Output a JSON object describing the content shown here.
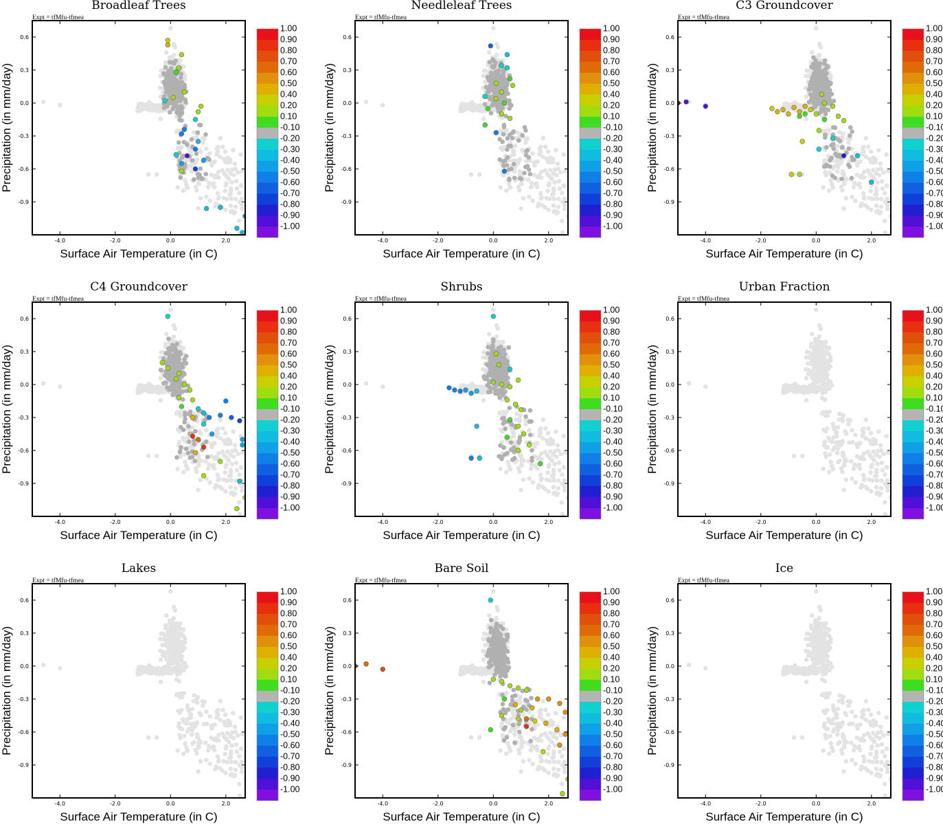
{
  "figure": {
    "expt_label": "Expt = tfMfu-tfmea",
    "xlabel": "Surface Air Temperature (in C)",
    "ylabel": "Precipitation (in mm/day)",
    "x_ticks": [
      "-4.0",
      "-2.0",
      "0.0",
      "2.0"
    ],
    "y_ticks": [
      "0.6",
      "0.3",
      "0.0",
      "-0.3",
      "-0.6",
      "-0.9"
    ],
    "colorbar_labels": [
      "1.00",
      "0.90",
      "0.80",
      "0.70",
      "0.60",
      "0.50",
      "0.40",
      "0.20",
      "0.10",
      "-0.10",
      "-0.20",
      "-0.30",
      "-0.40",
      "-0.50",
      "-0.60",
      "-0.70",
      "-0.80",
      "-0.90",
      "-1.00"
    ],
    "colorbar_colors": [
      "#e8101a",
      "#e83010",
      "#e0500a",
      "#e06a05",
      "#e0900a",
      "#e0b000",
      "#c8d000",
      "#a0dc10",
      "#40dc20",
      "#b4b4b4",
      "#10d0d0",
      "#10bce0",
      "#10a0e8",
      "#1080e8",
      "#1060e0",
      "#1040d8",
      "#2020d0",
      "#5010d8",
      "#8010e0"
    ]
  },
  "chart_data": [
    {
      "title": "Broadleaf Trees",
      "type": "scatter",
      "xlabel": "Surface Air Temperature (in C)",
      "ylabel": "Precipitation (in mm/day)",
      "xlim": [
        -5.0,
        2.7
      ],
      "ylim": [
        -1.2,
        0.75
      ],
      "colorbar_range": [
        -1.0,
        1.0
      ],
      "background_cloud": "light-gray cross-shaped cloud: T -2 to 2.6 C, P -1.2 to 0.6 mm/day",
      "gray_core": [
        [
          -0.1,
          0.0
        ],
        [
          0.0,
          0.1
        ],
        [
          0.1,
          -0.1
        ],
        [
          0.2,
          0.2
        ],
        [
          0.3,
          0.0
        ],
        [
          0.4,
          -0.2
        ],
        [
          0.5,
          0.1
        ],
        [
          0.2,
          -0.3
        ],
        [
          0.3,
          0.4
        ],
        [
          0.1,
          0.3
        ],
        [
          0.6,
          -0.1
        ],
        [
          0.0,
          -0.2
        ],
        [
          0.4,
          0.2
        ],
        [
          0.5,
          -0.4
        ],
        [
          0.2,
          -0.5
        ]
      ],
      "colored_points": [
        [
          -0.1,
          0.57,
          0.4
        ],
        [
          -0.1,
          0.53,
          0.5
        ],
        [
          0.4,
          0.44,
          0.2
        ],
        [
          0.3,
          0.32,
          0.2
        ],
        [
          0.2,
          0.28,
          0.1
        ],
        [
          0.5,
          0.1,
          0.2
        ],
        [
          0.1,
          0.05,
          0.2
        ],
        [
          -0.2,
          0.02,
          -0.2
        ],
        [
          1.1,
          -0.03,
          0.2
        ],
        [
          1.0,
          -0.08,
          0.2
        ],
        [
          0.9,
          -0.15,
          -0.2
        ],
        [
          0.5,
          -0.24,
          -0.5
        ],
        [
          0.4,
          -0.28,
          -0.5
        ],
        [
          1.0,
          -0.35,
          -0.3
        ],
        [
          0.9,
          -0.42,
          -0.5
        ],
        [
          0.2,
          -0.47,
          -0.2
        ],
        [
          0.6,
          -0.48,
          -0.9
        ],
        [
          1.2,
          -0.52,
          -0.4
        ],
        [
          0.4,
          -0.55,
          -0.4
        ],
        [
          0.9,
          -0.6,
          -0.7
        ],
        [
          0.4,
          -0.62,
          0.2
        ],
        [
          1.3,
          -0.96,
          -0.3
        ],
        [
          1.8,
          -0.95,
          -0.3
        ],
        [
          2.4,
          -1.14,
          -0.3
        ],
        [
          2.6,
          -1.18,
          -0.3
        ],
        [
          2.7,
          -1.03,
          -0.5
        ]
      ]
    },
    {
      "title": "Needleleaf Trees",
      "type": "scatter",
      "xlabel": "Surface Air Temperature (in C)",
      "ylabel": "Precipitation (in mm/day)",
      "xlim": [
        -5.0,
        2.7
      ],
      "ylim": [
        -1.2,
        0.75
      ],
      "colorbar_range": [
        -1.0,
        1.0
      ],
      "colored_points": [
        [
          -0.1,
          0.52,
          -0.6
        ],
        [
          0.5,
          0.44,
          -0.3
        ],
        [
          0.3,
          0.34,
          -0.2
        ],
        [
          0.5,
          0.32,
          -0.2
        ],
        [
          0.6,
          0.22,
          0.1
        ],
        [
          0.1,
          0.18,
          0.2
        ],
        [
          0.7,
          0.16,
          0.2
        ],
        [
          0.3,
          0.1,
          0.2
        ],
        [
          -0.3,
          0.06,
          -0.2
        ],
        [
          0.1,
          0.04,
          0.2
        ],
        [
          0.4,
          0.0,
          0.1
        ],
        [
          -0.2,
          -0.05,
          0.1
        ],
        [
          0.3,
          -0.1,
          0.2
        ],
        [
          0.6,
          -0.14,
          0.2
        ],
        [
          -0.3,
          -0.2,
          0.1
        ],
        [
          0.1,
          -0.27,
          -0.5
        ],
        [
          0.4,
          -0.62,
          -0.5
        ]
      ]
    },
    {
      "title": "C3 Groundcover",
      "type": "scatter",
      "xlabel": "Surface Air Temperature (in C)",
      "ylabel": "Precipitation (in mm/day)",
      "xlim": [
        -5.0,
        2.7
      ],
      "ylim": [
        -1.2,
        0.75
      ],
      "colorbar_range": [
        -1.0,
        1.0
      ],
      "colored_points": [
        [
          -5.0,
          0.0,
          -0.9
        ],
        [
          -4.7,
          0.01,
          -0.9
        ],
        [
          -4.0,
          -0.03,
          -0.9
        ],
        [
          -1.6,
          -0.05,
          0.4
        ],
        [
          -1.4,
          -0.08,
          0.5
        ],
        [
          -1.2,
          -0.06,
          0.5
        ],
        [
          -1.0,
          -0.1,
          0.5
        ],
        [
          -0.8,
          -0.04,
          0.5
        ],
        [
          -0.6,
          -0.08,
          0.5
        ],
        [
          -0.4,
          -0.03,
          0.5
        ],
        [
          -0.2,
          -0.06,
          0.4
        ],
        [
          0.0,
          -0.1,
          0.2
        ],
        [
          0.2,
          0.08,
          0.2
        ],
        [
          0.3,
          0.0,
          0.2
        ],
        [
          0.6,
          -0.03,
          0.2
        ],
        [
          0.8,
          -0.12,
          0.2
        ],
        [
          1.0,
          -0.16,
          0.2
        ],
        [
          -0.4,
          -0.1,
          0.1
        ],
        [
          0.3,
          -0.15,
          0.1
        ],
        [
          -0.6,
          -0.12,
          0.1
        ],
        [
          0.1,
          -0.25,
          0.3
        ],
        [
          -0.5,
          -0.35,
          0.4
        ],
        [
          0.6,
          -0.32,
          -0.2
        ],
        [
          0.1,
          -0.42,
          -0.2
        ],
        [
          1.0,
          -0.48,
          -0.8
        ],
        [
          1.5,
          -0.48,
          -0.3
        ],
        [
          2.0,
          -0.72,
          -0.3
        ],
        [
          -0.9,
          -0.65,
          0.4
        ],
        [
          -0.6,
          -0.65,
          0.3
        ]
      ]
    },
    {
      "title": "C4 Groundcover",
      "type": "scatter",
      "xlabel": "Surface Air Temperature (in C)",
      "ylabel": "Precipitation (in mm/day)",
      "xlim": [
        -5.0,
        2.7
      ],
      "ylim": [
        -1.2,
        0.75
      ],
      "colorbar_range": [
        -1.0,
        1.0
      ],
      "colored_points": [
        [
          -0.1,
          0.62,
          -0.2
        ],
        [
          -0.3,
          0.2,
          0.3
        ],
        [
          -0.1,
          0.15,
          0.2
        ],
        [
          0.3,
          0.1,
          0.2
        ],
        [
          0.2,
          0.05,
          0.2
        ],
        [
          0.5,
          0.0,
          0.2
        ],
        [
          0.7,
          -0.05,
          0.2
        ],
        [
          0.3,
          -0.12,
          0.2
        ],
        [
          0.8,
          -0.14,
          0.2
        ],
        [
          0.4,
          -0.2,
          0.1
        ],
        [
          1.0,
          -0.22,
          -0.2
        ],
        [
          1.2,
          -0.26,
          -0.3
        ],
        [
          0.8,
          -0.3,
          0.5
        ],
        [
          1.4,
          -0.3,
          -0.5
        ],
        [
          1.8,
          -0.28,
          -0.5
        ],
        [
          2.2,
          -0.3,
          -0.6
        ],
        [
          2.5,
          -0.33,
          -0.7
        ],
        [
          2.0,
          -0.15,
          -0.5
        ],
        [
          1.2,
          -0.36,
          -0.2
        ],
        [
          1.5,
          -0.45,
          -0.4
        ],
        [
          0.8,
          -0.47,
          0.9
        ],
        [
          1.0,
          -0.5,
          0.7
        ],
        [
          1.2,
          -0.57,
          0.9
        ],
        [
          0.9,
          -0.62,
          0.5
        ],
        [
          2.6,
          -0.5,
          -0.4
        ],
        [
          2.6,
          -0.55,
          -0.4
        ],
        [
          1.8,
          -0.7,
          0.3
        ],
        [
          1.2,
          -0.83,
          0.3
        ],
        [
          2.5,
          -0.88,
          -0.3
        ],
        [
          2.7,
          -1.03,
          0.3
        ],
        [
          2.4,
          -1.13,
          0.2
        ]
      ]
    },
    {
      "title": "Shrubs",
      "type": "scatter",
      "xlabel": "Surface Air Temperature (in C)",
      "ylabel": "Precipitation (in mm/day)",
      "xlim": [
        -5.0,
        2.7
      ],
      "ylim": [
        -1.2,
        0.75
      ],
      "colorbar_range": [
        -1.0,
        1.0
      ],
      "colored_points": [
        [
          0.0,
          0.62,
          -0.2
        ],
        [
          0.1,
          0.28,
          0.2
        ],
        [
          0.2,
          0.18,
          0.3
        ],
        [
          0.6,
          0.14,
          -0.2
        ],
        [
          -1.6,
          -0.03,
          -0.5
        ],
        [
          -1.4,
          -0.05,
          -0.5
        ],
        [
          -1.2,
          -0.06,
          -0.5
        ],
        [
          -1.0,
          -0.05,
          -0.4
        ],
        [
          -0.8,
          -0.08,
          -0.4
        ],
        [
          -0.6,
          -0.06,
          -0.3
        ],
        [
          0.0,
          0.02,
          0.2
        ],
        [
          0.3,
          0.0,
          0.2
        ],
        [
          0.6,
          -0.02,
          0.2
        ],
        [
          0.9,
          0.04,
          0.2
        ],
        [
          0.5,
          -0.14,
          0.2
        ],
        [
          0.8,
          -0.18,
          0.2
        ],
        [
          1.0,
          -0.23,
          0.2
        ],
        [
          0.6,
          -0.32,
          0.1
        ],
        [
          0.9,
          -0.38,
          0.2
        ],
        [
          -0.6,
          -0.38,
          -0.3
        ],
        [
          0.5,
          -0.48,
          0.1
        ],
        [
          1.1,
          -0.45,
          0.2
        ],
        [
          1.3,
          -0.55,
          0.2
        ],
        [
          0.9,
          -0.6,
          0.2
        ],
        [
          1.7,
          -0.72,
          0.1
        ],
        [
          -0.8,
          -0.67,
          -0.5
        ],
        [
          -0.5,
          -0.67,
          -0.3
        ]
      ]
    },
    {
      "title": "Urban Fraction",
      "type": "scatter",
      "xlabel": "Surface Air Temperature (in C)",
      "ylabel": "Precipitation (in mm/day)",
      "xlim": [
        -5.0,
        2.7
      ],
      "ylim": [
        -1.2,
        0.75
      ],
      "colorbar_range": [
        -1.0,
        1.0
      ],
      "colored_points": []
    },
    {
      "title": "Lakes",
      "type": "scatter",
      "xlabel": "Surface Air Temperature (in C)",
      "ylabel": "Precipitation (in mm/day)",
      "xlim": [
        -5.0,
        2.7
      ],
      "ylim": [
        -1.2,
        0.75
      ],
      "colorbar_range": [
        -1.0,
        1.0
      ],
      "colored_points": []
    },
    {
      "title": "Bare Soil",
      "type": "scatter",
      "xlabel": "Surface Air Temperature (in C)",
      "ylabel": "Precipitation (in mm/day)",
      "xlim": [
        -5.0,
        2.7
      ],
      "ylim": [
        -1.2,
        0.75
      ],
      "colorbar_range": [
        -1.0,
        1.0
      ],
      "colored_points": [
        [
          -5.0,
          0.0,
          0.9
        ],
        [
          -4.6,
          0.02,
          0.7
        ],
        [
          -4.0,
          -0.03,
          0.8
        ],
        [
          -0.1,
          0.6,
          -0.2
        ],
        [
          0.0,
          -0.12,
          0.2
        ],
        [
          0.3,
          -0.14,
          0.2
        ],
        [
          0.6,
          -0.18,
          0.2
        ],
        [
          0.9,
          -0.2,
          0.2
        ],
        [
          1.2,
          -0.22,
          0.2
        ],
        [
          0.4,
          -0.3,
          0.1
        ],
        [
          0.8,
          -0.35,
          0.5
        ],
        [
          1.0,
          -0.4,
          0.3
        ],
        [
          1.4,
          -0.38,
          0.5
        ],
        [
          1.6,
          -0.3,
          0.6
        ],
        [
          2.0,
          -0.3,
          0.6
        ],
        [
          2.4,
          -0.34,
          0.6
        ],
        [
          2.6,
          -0.42,
          0.6
        ],
        [
          1.2,
          -0.48,
          0.7
        ],
        [
          1.5,
          -0.5,
          0.4
        ],
        [
          1.9,
          -0.52,
          0.5
        ],
        [
          2.3,
          -0.58,
          0.5
        ],
        [
          2.6,
          -0.62,
          0.6
        ],
        [
          1.2,
          -0.55,
          0.9
        ],
        [
          0.9,
          -0.48,
          0.4
        ],
        [
          1.8,
          -0.78,
          0.4
        ],
        [
          2.4,
          -0.72,
          0.6
        ],
        [
          2.7,
          -1.03,
          0.4
        ],
        [
          2.5,
          -1.16,
          0.2
        ],
        [
          -0.1,
          -0.58,
          0.1
        ],
        [
          0.3,
          -0.45,
          0.2
        ]
      ]
    },
    {
      "title": "Ice",
      "type": "scatter",
      "xlabel": "Surface Air Temperature (in C)",
      "ylabel": "Precipitation (in mm/day)",
      "xlim": [
        -5.0,
        2.7
      ],
      "ylim": [
        -1.2,
        0.75
      ],
      "colorbar_range": [
        -1.0,
        1.0
      ],
      "colored_points": []
    }
  ]
}
